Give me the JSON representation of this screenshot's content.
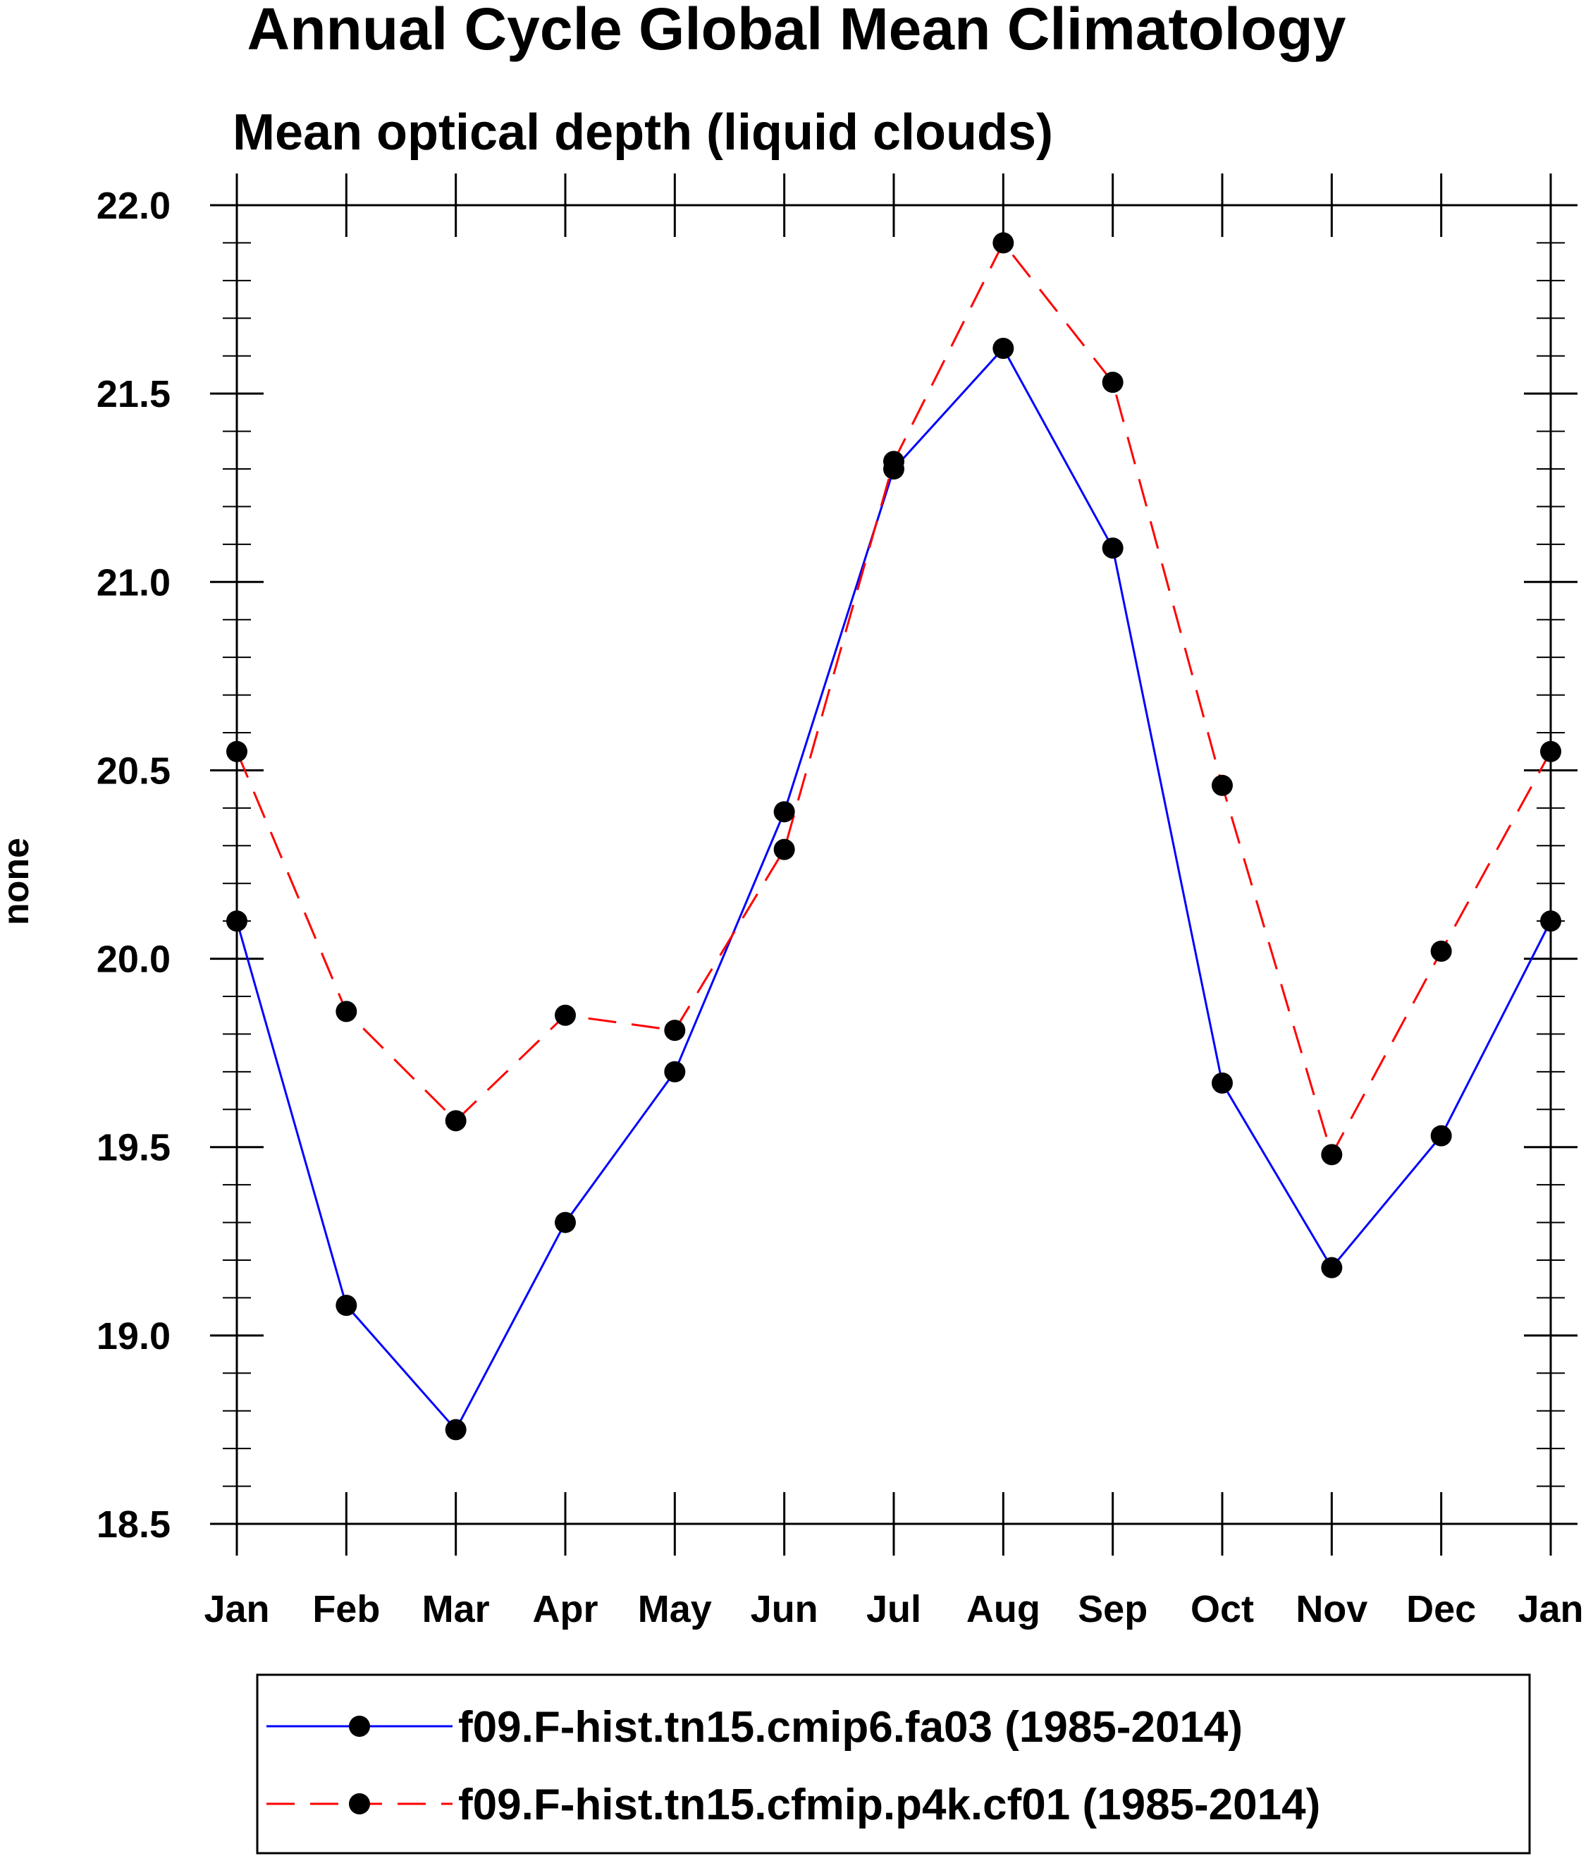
{
  "chart_data": {
    "type": "line",
    "title": "Annual Cycle Global Mean Climatology",
    "subtitle": "Mean optical depth (liquid clouds)",
    "xlabel": "",
    "ylabel": "none",
    "categories": [
      "Jan",
      "Feb",
      "Mar",
      "Apr",
      "May",
      "Jun",
      "Jul",
      "Aug",
      "Sep",
      "Oct",
      "Nov",
      "Dec",
      "Jan"
    ],
    "ylim": [
      18.5,
      22.0
    ],
    "yticks": [
      "18.5",
      "19.0",
      "19.5",
      "20.0",
      "20.5",
      "21.0",
      "21.5",
      "22.0"
    ],
    "grid": false,
    "legend_position": "bottom",
    "series": [
      {
        "name": "f09.F-hist.tn15.cmip6.fa03 (1985-2014)",
        "color": "#0000ff",
        "style": "solid",
        "marker": "filled-circle",
        "values": [
          20.1,
          19.08,
          18.75,
          19.3,
          19.7,
          20.39,
          21.3,
          21.62,
          21.09,
          19.67,
          19.18,
          19.53,
          20.1
        ]
      },
      {
        "name": "f09.F-hist.tn15.cfmip.p4k.cf01 (1985-2014)",
        "color": "#ff0000",
        "style": "dashed",
        "marker": "filled-circle",
        "values": [
          20.55,
          19.86,
          19.57,
          19.85,
          19.81,
          20.29,
          21.32,
          21.9,
          21.53,
          20.46,
          19.48,
          20.02,
          20.55
        ]
      }
    ]
  }
}
